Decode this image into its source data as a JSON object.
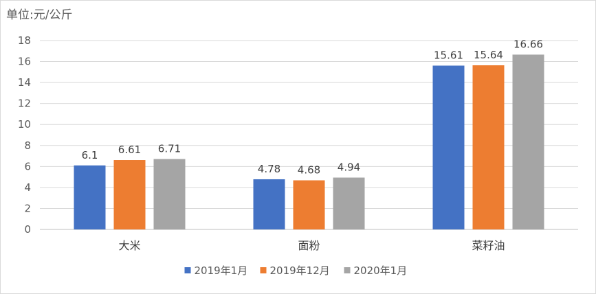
{
  "chart_data": {
    "type": "bar",
    "unit_label": "单位:元/公斤",
    "categories": [
      "大米",
      "面粉",
      "菜籽油"
    ],
    "series": [
      {
        "name": "2019年1月",
        "color": "#4472c4",
        "values": [
          6.1,
          4.78,
          15.61
        ],
        "labels": [
          "6.1",
          "4.78",
          "15.61"
        ]
      },
      {
        "name": "2019年12月",
        "color": "#ed7d31",
        "values": [
          6.61,
          4.68,
          15.64
        ],
        "labels": [
          "6.61",
          "4.68",
          "15.64"
        ]
      },
      {
        "name": "2020年1月",
        "color": "#a5a5a5",
        "values": [
          6.71,
          4.94,
          16.66
        ],
        "labels": [
          "6.71",
          "4.94",
          "16.66"
        ]
      }
    ],
    "ylim": [
      0,
      18
    ],
    "yticks": [
      "0",
      "2",
      "4",
      "6",
      "8",
      "10",
      "12",
      "14",
      "16",
      "18"
    ],
    "grid": true,
    "legend_position": "bottom"
  }
}
